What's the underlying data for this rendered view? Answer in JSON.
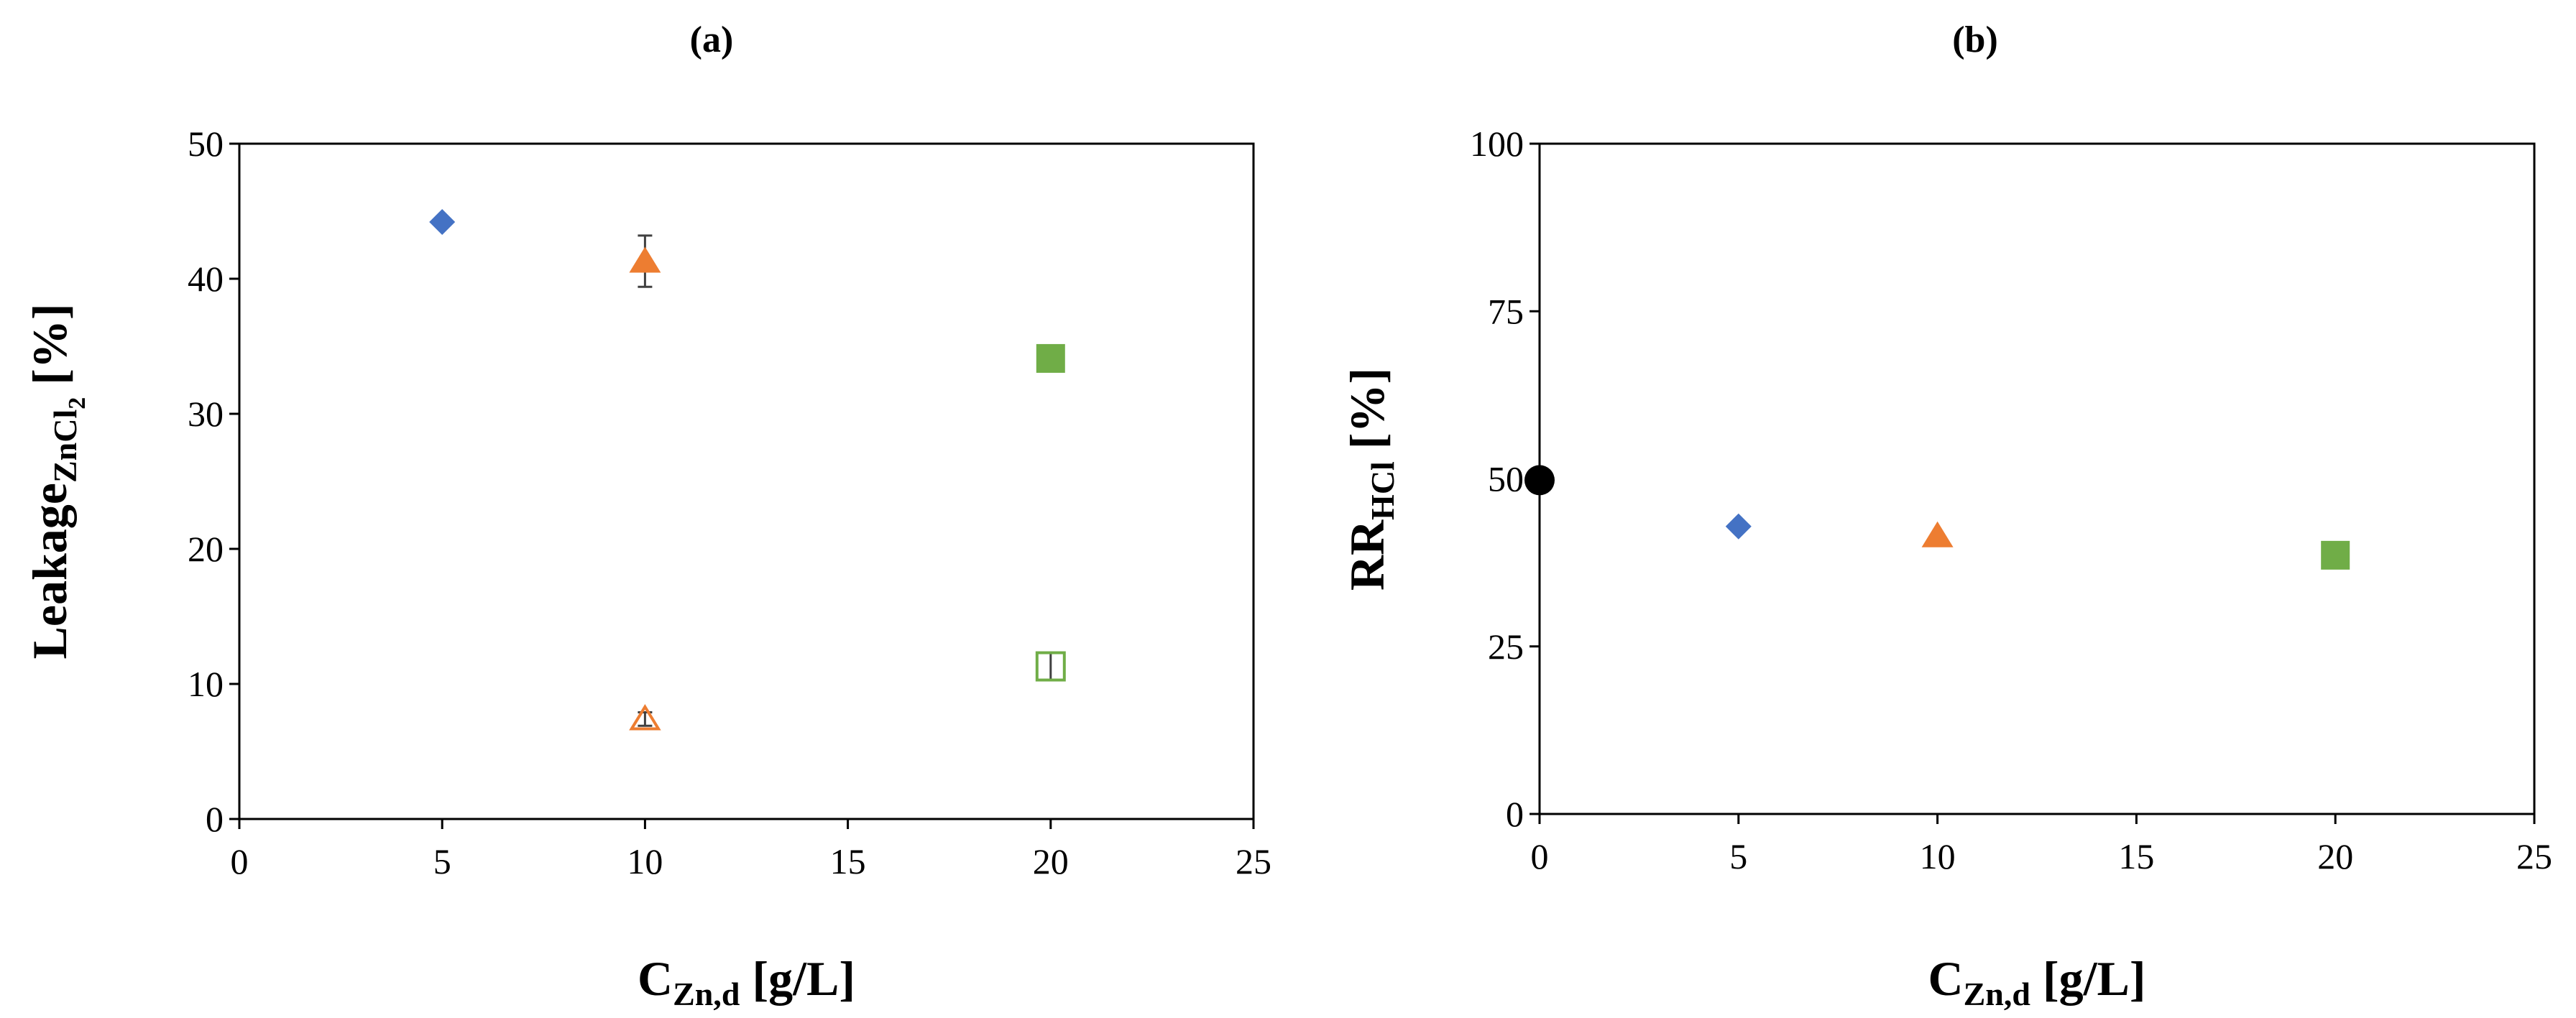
{
  "chart_data": [
    {
      "type": "scatter",
      "panel_label": "(a)",
      "xlabel": {
        "main": "C",
        "sub": "Zn,d",
        "unit": " [g/L]"
      },
      "ylabel": {
        "main": "Leakage",
        "sub": "ZnCl",
        "subsub": "2",
        "unit": " [%]"
      },
      "xlim": [
        0,
        25
      ],
      "ylim": [
        0,
        50
      ],
      "xticks": [
        0,
        5,
        10,
        15,
        20,
        25
      ],
      "yticks": [
        0,
        10,
        20,
        30,
        40,
        50
      ],
      "grid": false,
      "series": [
        {
          "marker": "diamond",
          "color": "#4472C4",
          "filled": true,
          "points": [
            {
              "x": 5,
              "y": 44.2
            }
          ]
        },
        {
          "marker": "triangle",
          "color": "#ED7D31",
          "filled": true,
          "points": [
            {
              "x": 10,
              "y": 41.3,
              "err": 1.9
            }
          ]
        },
        {
          "marker": "square",
          "color": "#70AD47",
          "filled": true,
          "points": [
            {
              "x": 20,
              "y": 34.1
            }
          ]
        },
        {
          "marker": "triangle",
          "color": "#ED7D31",
          "filled": false,
          "points": [
            {
              "x": 10,
              "y": 7.4,
              "err": 0.5
            }
          ]
        },
        {
          "marker": "square",
          "color": "#70AD47",
          "filled": false,
          "points": [
            {
              "x": 20,
              "y": 11.3,
              "err": 1.0
            }
          ]
        }
      ]
    },
    {
      "type": "scatter",
      "panel_label": "(b)",
      "xlabel": {
        "main": "C",
        "sub": "Zn,d",
        "unit": " [g/L]"
      },
      "ylabel": {
        "main": "RR",
        "sub": "HCl",
        "subsub": "",
        "unit": " [%]"
      },
      "xlim": [
        0,
        25
      ],
      "ylim": [
        0,
        100
      ],
      "xticks": [
        0,
        5,
        10,
        15,
        20,
        25
      ],
      "yticks": [
        0,
        25,
        50,
        75,
        100
      ],
      "grid": false,
      "series": [
        {
          "marker": "circle",
          "color": "#000000",
          "filled": true,
          "points": [
            {
              "x": 0,
              "y": 49.8
            }
          ]
        },
        {
          "marker": "diamond",
          "color": "#4472C4",
          "filled": true,
          "points": [
            {
              "x": 5,
              "y": 42.9
            }
          ]
        },
        {
          "marker": "triangle",
          "color": "#ED7D31",
          "filled": true,
          "points": [
            {
              "x": 10,
              "y": 41.5
            }
          ]
        },
        {
          "marker": "square",
          "color": "#70AD47",
          "filled": true,
          "points": [
            {
              "x": 20,
              "y": 38.6
            }
          ]
        }
      ]
    }
  ]
}
